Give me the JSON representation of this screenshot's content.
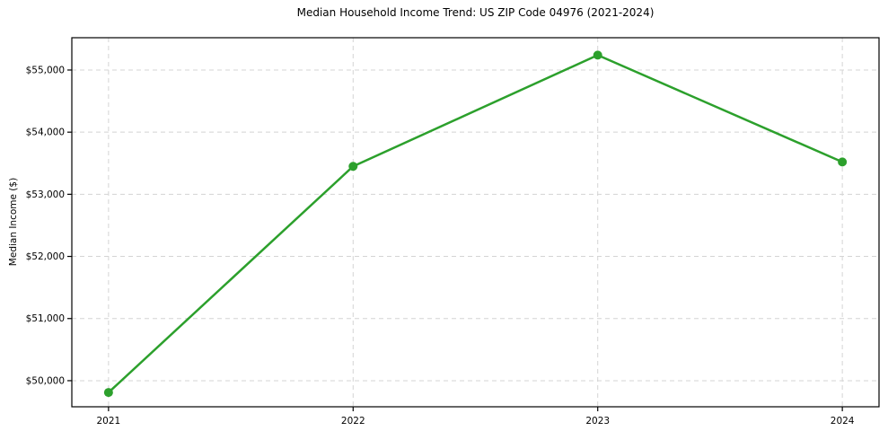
{
  "chart_data": {
    "type": "line",
    "title": "Median Household Income Trend: US ZIP Code 04976 (2021-2024)",
    "xlabel": "",
    "ylabel": "Median Income ($)",
    "x": [
      2021,
      2022,
      2023,
      2024
    ],
    "categories": [
      "2021",
      "2022",
      "2023",
      "2024"
    ],
    "values": [
      49810,
      53450,
      55240,
      53520
    ],
    "yticks": [
      50000,
      51000,
      52000,
      53000,
      54000,
      55000
    ],
    "ytick_labels": [
      "$50,000",
      "$51,000",
      "$52,000",
      "$53,000",
      "$54,000",
      "$55,000"
    ],
    "xlim": [
      2020.85,
      2024.15
    ],
    "ylim": [
      49580,
      55520
    ],
    "grid": true,
    "grid_line_style": "dashed",
    "grid_color": "#d4d4d4",
    "spine_color": "#000000",
    "line_color": "#2ca02c",
    "marker": "circle",
    "legend": "none",
    "background": "#ffffff"
  }
}
